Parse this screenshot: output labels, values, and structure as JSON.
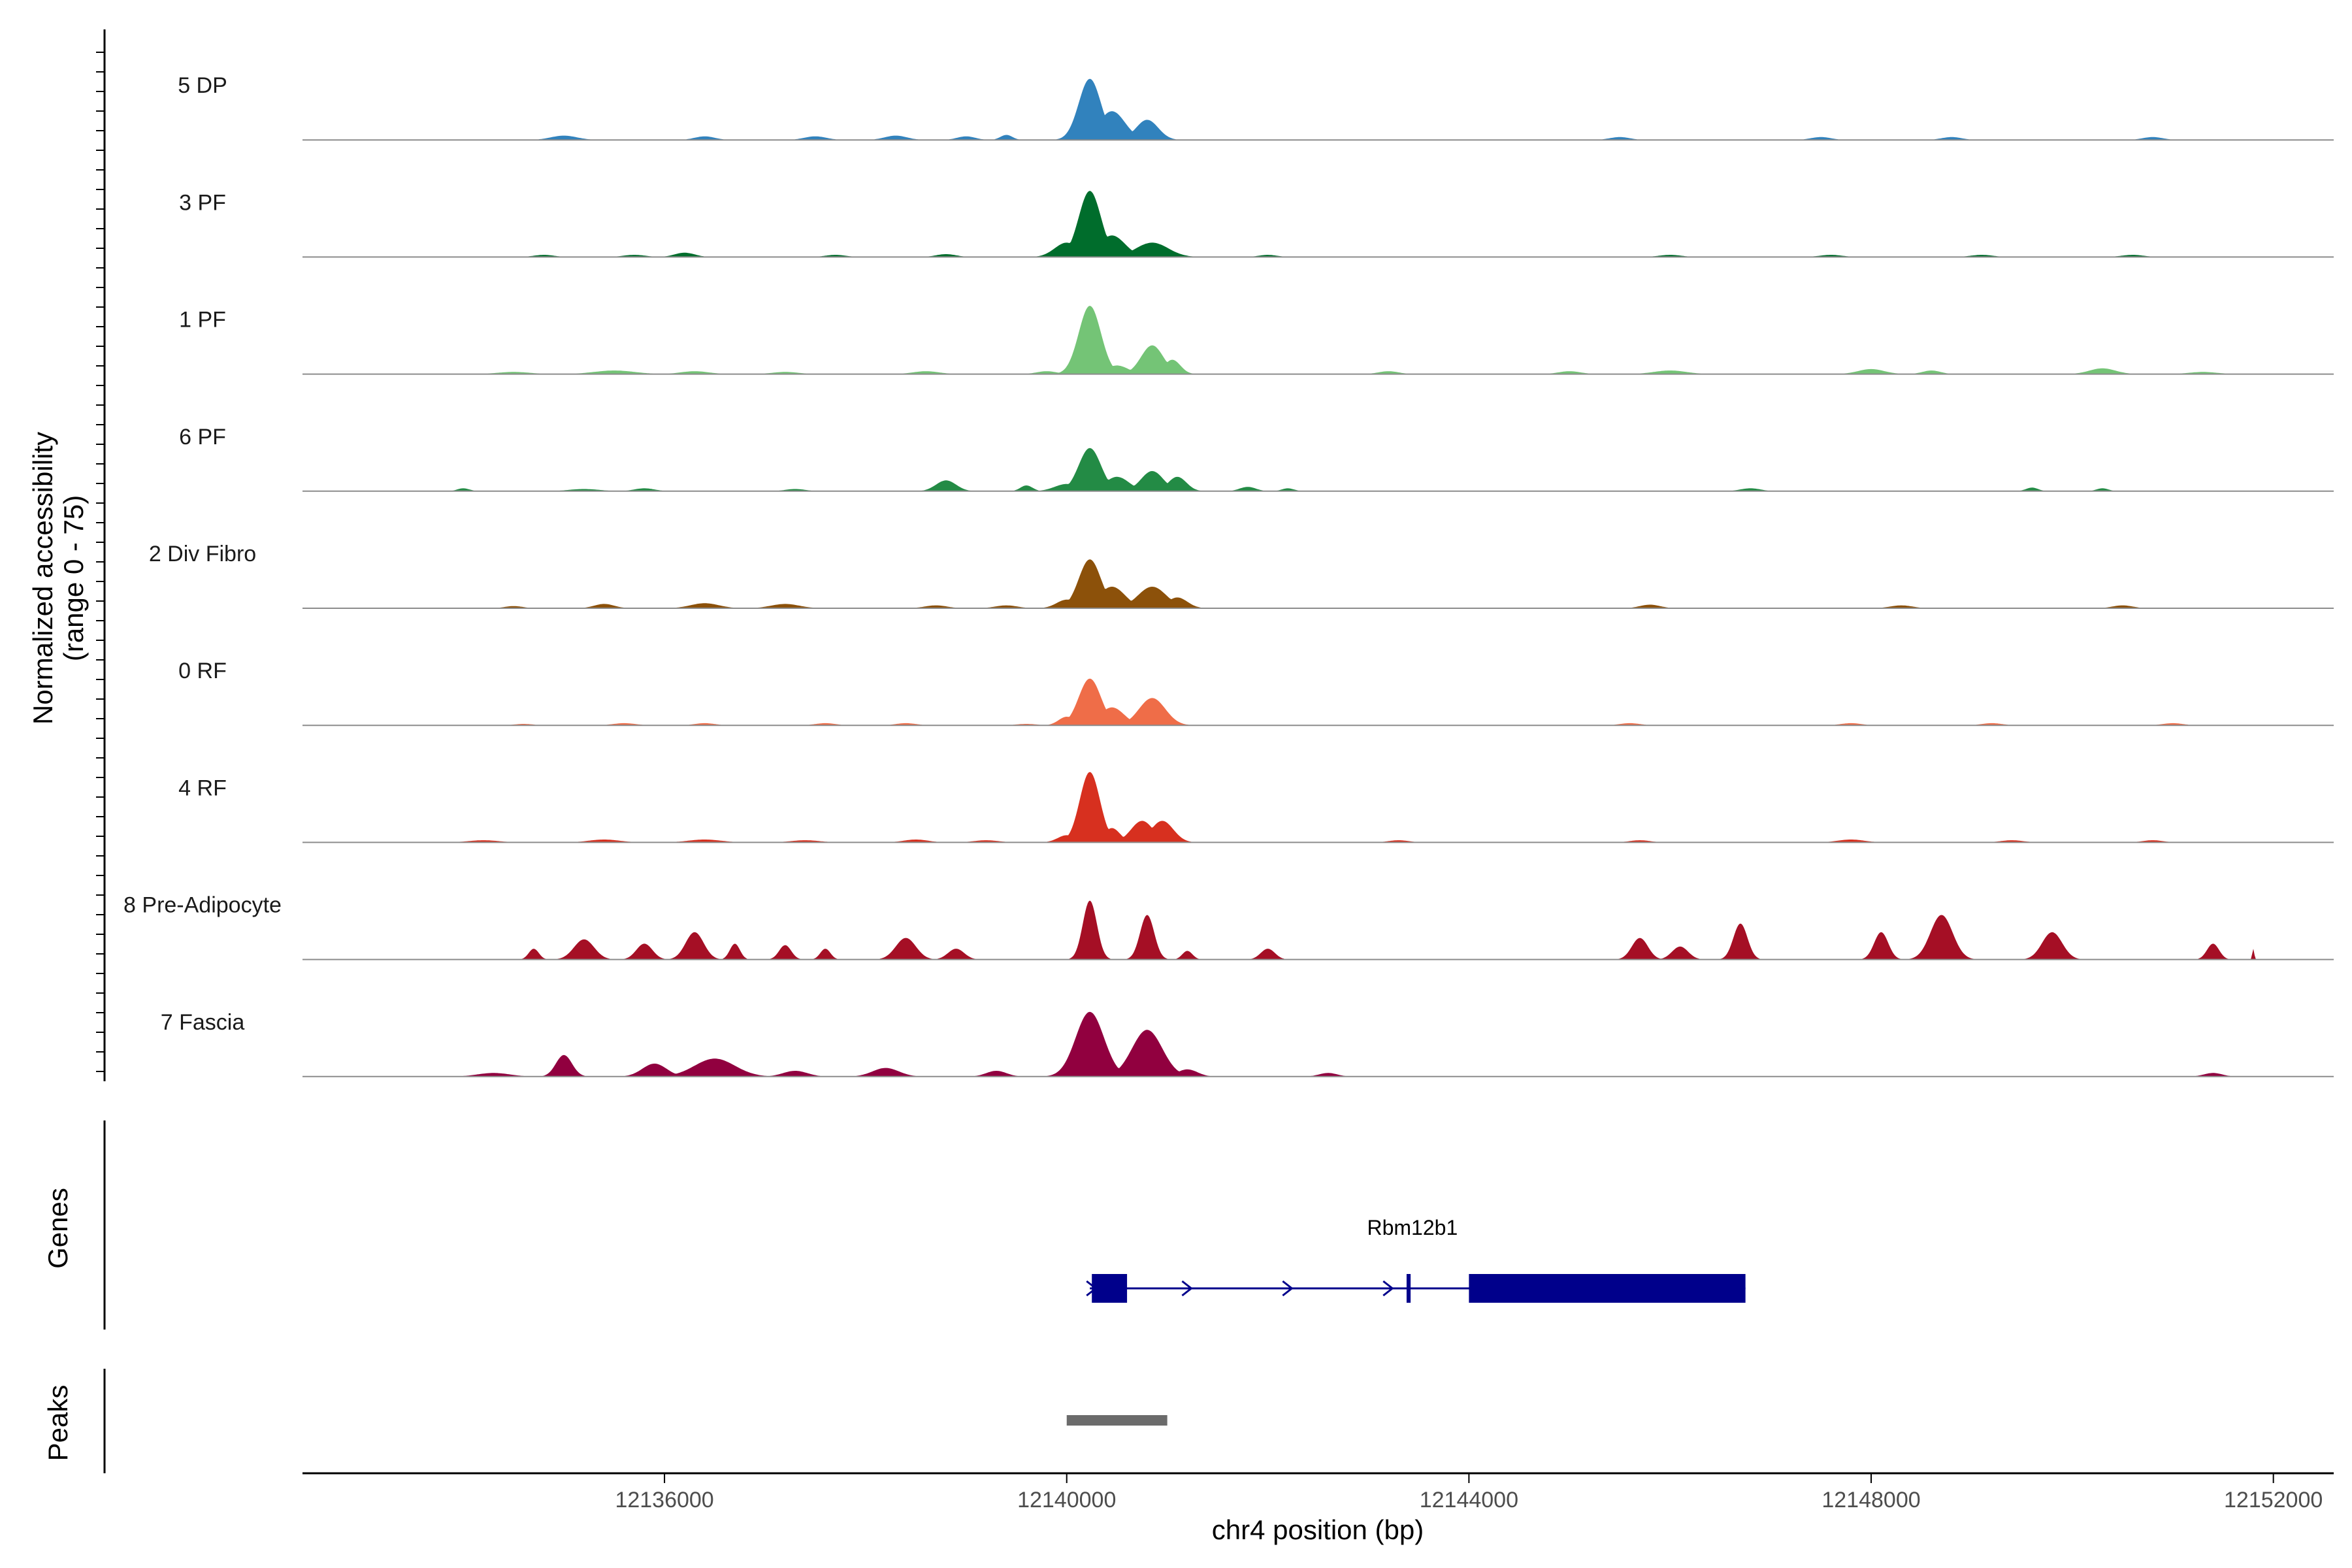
{
  "chart_data": {
    "type": "area",
    "title": "",
    "ylabel_line1": "Normalized accessibility",
    "ylabel_line2": "(range 0 - 75)",
    "yrange": [
      0,
      75
    ],
    "xlabel": "chr4 position (bp)",
    "xlim": [
      12132400,
      12152600
    ],
    "xticks": [
      12136000,
      12140000,
      12144000,
      12148000,
      12152000
    ],
    "xtick_labels": [
      "12136000",
      "12140000",
      "12144000",
      "12148000",
      "12152000"
    ],
    "tracks": [
      {
        "name": "5 DP",
        "color": "#3182bd",
        "peaks": [
          [
            12135000,
            0.06,
            130
          ],
          [
            12136400,
            0.05,
            100
          ],
          [
            12137500,
            0.05,
            110
          ],
          [
            12138300,
            0.06,
            110
          ],
          [
            12139000,
            0.05,
            90
          ],
          [
            12139400,
            0.07,
            60
          ],
          [
            12140230,
            0.85,
            110
          ],
          [
            12140450,
            0.4,
            130
          ],
          [
            12140800,
            0.28,
            110
          ],
          [
            12145500,
            0.04,
            100
          ],
          [
            12147500,
            0.04,
            100
          ],
          [
            12148800,
            0.04,
            100
          ],
          [
            12150800,
            0.04,
            100
          ]
        ]
      },
      {
        "name": "3 PF",
        "color": "#006d2c",
        "peaks": [
          [
            12134800,
            0.03,
            100
          ],
          [
            12135700,
            0.03,
            110
          ],
          [
            12136200,
            0.06,
            100
          ],
          [
            12137700,
            0.03,
            100
          ],
          [
            12138800,
            0.04,
            100
          ],
          [
            12140230,
            0.92,
            110
          ],
          [
            12140000,
            0.2,
            120
          ],
          [
            12140450,
            0.3,
            130
          ],
          [
            12140850,
            0.2,
            160
          ],
          [
            12142000,
            0.03,
            90
          ],
          [
            12146000,
            0.03,
            110
          ],
          [
            12147600,
            0.03,
            110
          ],
          [
            12149100,
            0.03,
            110
          ],
          [
            12150600,
            0.03,
            110
          ]
        ]
      },
      {
        "name": "1 PF",
        "color": "#74c476",
        "peaks": [
          [
            12134500,
            0.03,
            160
          ],
          [
            12135500,
            0.05,
            200
          ],
          [
            12136300,
            0.04,
            140
          ],
          [
            12137200,
            0.03,
            130
          ],
          [
            12138600,
            0.04,
            130
          ],
          [
            12139800,
            0.04,
            100
          ],
          [
            12140230,
            0.95,
            110
          ],
          [
            12140500,
            0.12,
            110
          ],
          [
            12140850,
            0.4,
            110
          ],
          [
            12141050,
            0.2,
            80
          ],
          [
            12143200,
            0.04,
            100
          ],
          [
            12145000,
            0.04,
            110
          ],
          [
            12146000,
            0.05,
            160
          ],
          [
            12148000,
            0.07,
            130
          ],
          [
            12148600,
            0.05,
            90
          ],
          [
            12150300,
            0.08,
            130
          ],
          [
            12151300,
            0.03,
            140
          ]
        ]
      },
      {
        "name": "6 PF",
        "color": "#238b45",
        "peaks": [
          [
            12134000,
            0.04,
            60
          ],
          [
            12135200,
            0.03,
            150
          ],
          [
            12135800,
            0.04,
            100
          ],
          [
            12137300,
            0.03,
            100
          ],
          [
            12138800,
            0.15,
            100
          ],
          [
            12139600,
            0.08,
            60
          ],
          [
            12140000,
            0.1,
            120
          ],
          [
            12140230,
            0.6,
            110
          ],
          [
            12140500,
            0.2,
            120
          ],
          [
            12140850,
            0.28,
            110
          ],
          [
            12141100,
            0.2,
            90
          ],
          [
            12141800,
            0.06,
            80
          ],
          [
            12142200,
            0.04,
            60
          ],
          [
            12146800,
            0.04,
            100
          ],
          [
            12149600,
            0.05,
            60
          ],
          [
            12150300,
            0.04,
            60
          ]
        ]
      },
      {
        "name": "2 Div Fibro",
        "color": "#8c510a",
        "peaks": [
          [
            12134500,
            0.03,
            90
          ],
          [
            12135400,
            0.06,
            100
          ],
          [
            12136400,
            0.07,
            140
          ],
          [
            12137200,
            0.06,
            140
          ],
          [
            12138700,
            0.04,
            110
          ],
          [
            12139400,
            0.04,
            110
          ],
          [
            12140000,
            0.12,
            100
          ],
          [
            12140230,
            0.68,
            110
          ],
          [
            12140450,
            0.3,
            130
          ],
          [
            12140850,
            0.3,
            140
          ],
          [
            12141100,
            0.15,
            100
          ],
          [
            12145800,
            0.05,
            100
          ],
          [
            12148300,
            0.04,
            110
          ],
          [
            12150500,
            0.04,
            100
          ]
        ]
      },
      {
        "name": "0 RF",
        "color": "#ef6d48",
        "peaks": [
          [
            12134600,
            0.02,
            90
          ],
          [
            12135600,
            0.03,
            110
          ],
          [
            12136400,
            0.03,
            100
          ],
          [
            12137600,
            0.03,
            100
          ],
          [
            12138400,
            0.03,
            100
          ],
          [
            12139600,
            0.02,
            100
          ],
          [
            12140000,
            0.12,
            80
          ],
          [
            12140230,
            0.65,
            110
          ],
          [
            12140450,
            0.25,
            120
          ],
          [
            12140850,
            0.38,
            130
          ],
          [
            12145600,
            0.03,
            100
          ],
          [
            12147800,
            0.03,
            100
          ],
          [
            12149200,
            0.03,
            100
          ],
          [
            12151000,
            0.03,
            100
          ]
        ]
      },
      {
        "name": "4 RF",
        "color": "#d7301f",
        "peaks": [
          [
            12134200,
            0.03,
            150
          ],
          [
            12135400,
            0.04,
            150
          ],
          [
            12136400,
            0.04,
            160
          ],
          [
            12137400,
            0.03,
            140
          ],
          [
            12138500,
            0.04,
            120
          ],
          [
            12139200,
            0.03,
            120
          ],
          [
            12140000,
            0.1,
            90
          ],
          [
            12140230,
            0.98,
            100
          ],
          [
            12140450,
            0.2,
            80
          ],
          [
            12140750,
            0.3,
            110
          ],
          [
            12140950,
            0.3,
            110
          ],
          [
            12143300,
            0.03,
            100
          ],
          [
            12145700,
            0.03,
            100
          ],
          [
            12147800,
            0.04,
            130
          ],
          [
            12149400,
            0.03,
            110
          ],
          [
            12150800,
            0.03,
            100
          ]
        ]
      },
      {
        "name": "8 Pre-Adipocyte",
        "color": "#a50f25",
        "peaks": [
          [
            12134700,
            0.15,
            50
          ],
          [
            12135200,
            0.28,
            100
          ],
          [
            12135800,
            0.22,
            80
          ],
          [
            12136300,
            0.38,
            90
          ],
          [
            12136700,
            0.22,
            50
          ],
          [
            12137200,
            0.2,
            60
          ],
          [
            12137600,
            0.15,
            50
          ],
          [
            12138400,
            0.3,
            100
          ],
          [
            12138900,
            0.15,
            80
          ],
          [
            12140230,
            0.82,
            70
          ],
          [
            12140800,
            0.62,
            70
          ],
          [
            12141200,
            0.12,
            50
          ],
          [
            12142000,
            0.15,
            70
          ],
          [
            12145700,
            0.3,
            80
          ],
          [
            12146100,
            0.18,
            80
          ],
          [
            12146700,
            0.5,
            70
          ],
          [
            12148100,
            0.38,
            70
          ],
          [
            12148700,
            0.62,
            110
          ],
          [
            12149800,
            0.38,
            100
          ],
          [
            12151400,
            0.22,
            60
          ],
          [
            12151800,
            0.15,
            10
          ]
        ]
      },
      {
        "name": "7 Fascia",
        "color": "#91003f",
        "peaks": [
          [
            12134300,
            0.05,
            160
          ],
          [
            12135000,
            0.3,
            80
          ],
          [
            12135900,
            0.18,
            120
          ],
          [
            12136500,
            0.25,
            200
          ],
          [
            12137300,
            0.08,
            120
          ],
          [
            12138200,
            0.12,
            130
          ],
          [
            12139300,
            0.08,
            100
          ],
          [
            12140230,
            0.9,
            140
          ],
          [
            12140800,
            0.65,
            150
          ],
          [
            12141200,
            0.1,
            100
          ],
          [
            12142600,
            0.05,
            90
          ],
          [
            12151400,
            0.05,
            90
          ]
        ]
      }
    ],
    "genes": {
      "title": "Genes",
      "name": "Rbm12b1",
      "start": 12140230,
      "end": 12146750,
      "exons": [
        [
          12140250,
          12140600
        ],
        [
          12143380,
          12143420
        ],
        [
          12144000,
          12146750
        ]
      ],
      "arrows": [
        12140250,
        12141200,
        12142200,
        12143200
      ],
      "color": "#00008b"
    },
    "peaks": {
      "title": "Peaks",
      "ranges": [
        [
          12140000,
          12141000
        ]
      ],
      "color": "#6b6b6b"
    }
  }
}
